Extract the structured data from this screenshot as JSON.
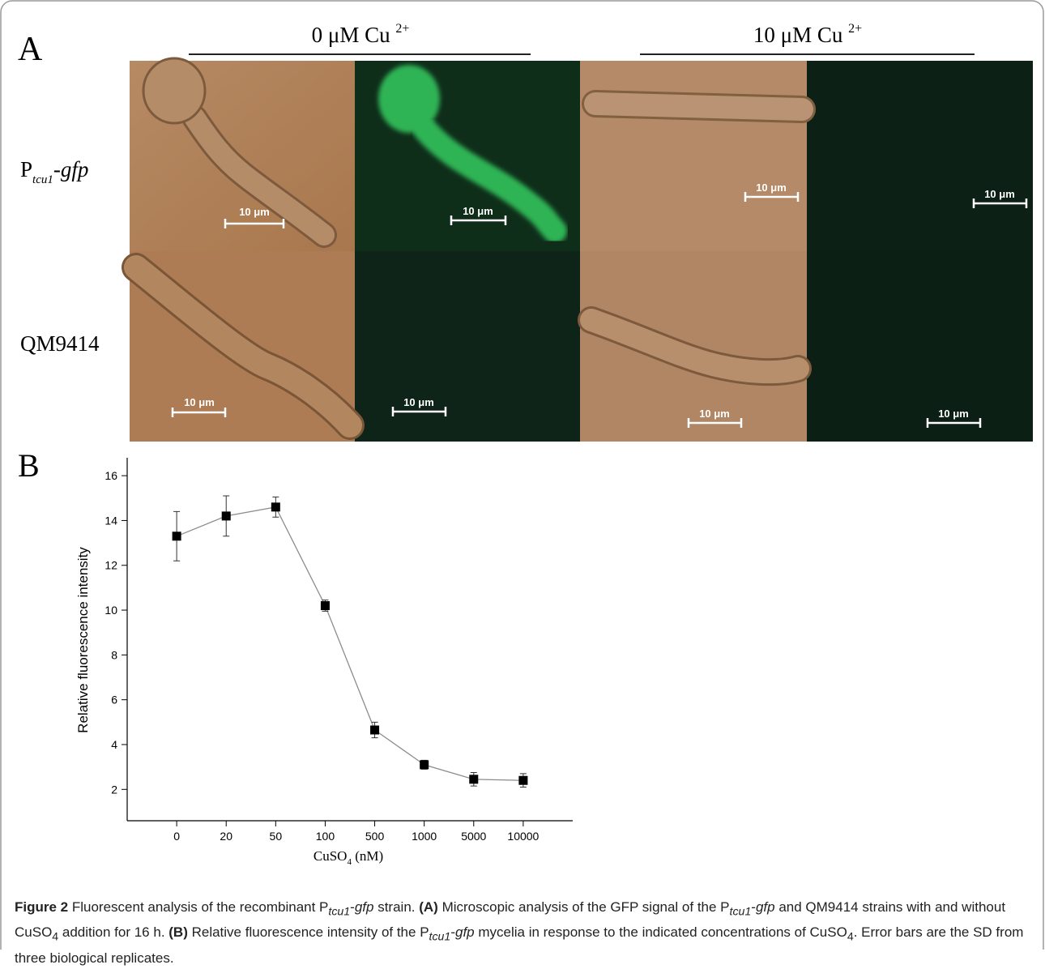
{
  "panel_labels": [
    "A",
    "B"
  ],
  "panel_a": {
    "columns": [
      {
        "text": "0 μM Cu",
        "sup": "2+"
      },
      {
        "text": "10 μM Cu",
        "sup": "2+"
      }
    ],
    "rows": [
      {
        "text": "P",
        "sub": "tcu1",
        "suffix": "-gfp"
      },
      {
        "text": "QM9414"
      }
    ],
    "scale_bars": [
      "10 μm",
      "10 μm",
      "10 μm",
      "10 μm",
      "10 μm",
      "10 μm",
      "10 μm",
      "10 μm"
    ]
  },
  "chart_data": {
    "type": "line",
    "categories": [
      "0",
      "20",
      "50",
      "100",
      "500",
      "1000",
      "5000",
      "10000"
    ],
    "values": [
      13.3,
      14.2,
      14.6,
      10.2,
      4.65,
      3.1,
      2.45,
      2.4
    ],
    "errors": [
      1.1,
      0.9,
      0.45,
      0.25,
      0.35,
      0.2,
      0.3,
      0.3
    ],
    "color": "#8c8c8c",
    "marker_color": "#000000",
    "ylim": [
      0.6,
      16.8
    ],
    "yticks": [
      2,
      4,
      6,
      8,
      10,
      12,
      14,
      16
    ],
    "y_label": "Relative fluorescence intensity",
    "x_label": {
      "text": "CuSO",
      "sub": "4",
      "suffix": " (nM)"
    }
  },
  "caption": [
    "Figure 2",
    " Fluorescent analysis of the recombinant P",
    "tcu1",
    "-",
    "gfp",
    " strain. ",
    "(A)",
    " Microscopic analysis of the GFP signal of the P",
    "tcu1",
    "-",
    "gfp",
    " and QM9414 strains with and without CuSO",
    "4",
    " addition for 16 h. ",
    "(B)",
    " Relative fluorescence intensity of the P",
    "tcu1",
    "-",
    "gfp",
    " mycelia in response to the indicated concentrations of CuSO",
    "4",
    ". Error bars are the SD from three biological replicates."
  ]
}
